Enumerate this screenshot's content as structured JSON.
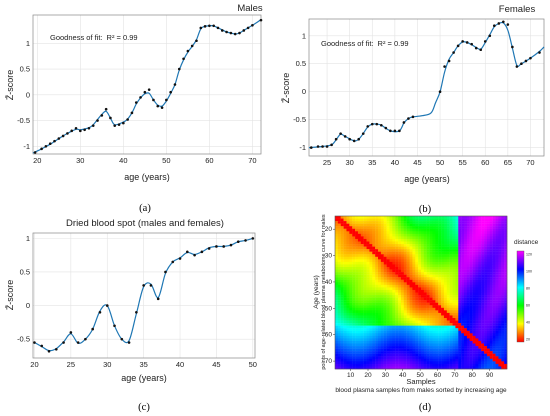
{
  "chart_data": [
    {
      "id": "a",
      "type": "line",
      "title": "Males",
      "xlabel": "age (years)",
      "ylabel": "Z̄-score",
      "xlim": [
        19,
        72
      ],
      "ylim": [
        -1.15,
        1.55
      ],
      "xticks": [
        20,
        30,
        40,
        50,
        60,
        70
      ],
      "yticks": [
        -1,
        -0.5,
        0,
        0.5,
        1
      ],
      "ytick_labels": [
        "-1",
        "-0.5",
        "0",
        "0.5",
        "1"
      ],
      "annotation": "Goodness of fit:",
      "annotation_r2": "R² = 0.99",
      "grid": true,
      "caption": "(a)",
      "points": [
        [
          19.5,
          -1.12
        ],
        [
          21,
          -1.05
        ],
        [
          22,
          -1.0
        ],
        [
          23,
          -0.95
        ],
        [
          24,
          -0.9
        ],
        [
          25,
          -0.85
        ],
        [
          26,
          -0.8
        ],
        [
          27,
          -0.75
        ],
        [
          28,
          -0.7
        ],
        [
          29,
          -0.65
        ],
        [
          30,
          -0.7
        ],
        [
          31,
          -0.68
        ],
        [
          32,
          -0.65
        ],
        [
          33,
          -0.6
        ],
        [
          34,
          -0.5
        ],
        [
          35,
          -0.4
        ],
        [
          36,
          -0.28
        ],
        [
          37,
          -0.45
        ],
        [
          38,
          -0.6
        ],
        [
          39,
          -0.58
        ],
        [
          40,
          -0.55
        ],
        [
          41,
          -0.48
        ],
        [
          42,
          -0.35
        ],
        [
          43,
          -0.15
        ],
        [
          44,
          -0.05
        ],
        [
          45,
          0.05
        ],
        [
          46,
          0.1
        ],
        [
          47,
          -0.1
        ],
        [
          48,
          -0.22
        ],
        [
          49,
          -0.25
        ],
        [
          50,
          -0.1
        ],
        [
          51,
          0.05
        ],
        [
          52,
          0.2
        ],
        [
          53,
          0.5
        ],
        [
          54,
          0.7
        ],
        [
          55,
          0.85
        ],
        [
          56,
          0.95
        ],
        [
          57,
          1.05
        ],
        [
          58,
          1.3
        ],
        [
          59,
          1.33
        ],
        [
          60,
          1.34
        ],
        [
          61,
          1.34
        ],
        [
          62,
          1.3
        ],
        [
          63,
          1.25
        ],
        [
          64,
          1.22
        ],
        [
          65,
          1.2
        ],
        [
          66,
          1.18
        ],
        [
          67,
          1.2
        ],
        [
          68,
          1.25
        ],
        [
          69,
          1.3
        ],
        [
          70,
          1.35
        ],
        [
          72,
          1.45
        ]
      ],
      "fit": [
        [
          19,
          -1.13
        ],
        [
          21,
          -1.05
        ],
        [
          23,
          -0.96
        ],
        [
          25,
          -0.85
        ],
        [
          27,
          -0.75
        ],
        [
          29,
          -0.67
        ],
        [
          30,
          -0.68
        ],
        [
          32,
          -0.64
        ],
        [
          33,
          -0.58
        ],
        [
          34,
          -0.48
        ],
        [
          35,
          -0.38
        ],
        [
          36,
          -0.32
        ],
        [
          37,
          -0.45
        ],
        [
          38,
          -0.58
        ],
        [
          40,
          -0.53
        ],
        [
          41,
          -0.47
        ],
        [
          42,
          -0.35
        ],
        [
          43,
          -0.18
        ],
        [
          44,
          -0.06
        ],
        [
          45,
          0.02
        ],
        [
          46,
          0.03
        ],
        [
          47,
          -0.1
        ],
        [
          48,
          -0.2
        ],
        [
          49,
          -0.22
        ],
        [
          50,
          -0.12
        ],
        [
          51,
          0.03
        ],
        [
          52,
          0.2
        ],
        [
          53,
          0.48
        ],
        [
          54,
          0.68
        ],
        [
          55,
          0.83
        ],
        [
          56,
          0.94
        ],
        [
          57,
          1.07
        ],
        [
          58,
          1.28
        ],
        [
          59,
          1.33
        ],
        [
          60,
          1.34
        ],
        [
          61,
          1.34
        ],
        [
          62,
          1.3
        ],
        [
          63,
          1.26
        ],
        [
          64,
          1.22
        ],
        [
          65,
          1.2
        ],
        [
          66,
          1.18
        ],
        [
          67,
          1.2
        ],
        [
          68,
          1.25
        ],
        [
          70,
          1.35
        ],
        [
          72,
          1.46
        ]
      ]
    },
    {
      "id": "b",
      "type": "line",
      "title": "Females",
      "xlabel": "age (years)",
      "ylabel": "Z̄-score",
      "xlim": [
        21,
        73
      ],
      "ylim": [
        -1.15,
        1.3
      ],
      "xticks": [
        25,
        30,
        35,
        40,
        45,
        50,
        55,
        60,
        65,
        70
      ],
      "yticks": [
        -1,
        -0.5,
        0,
        0.5,
        1
      ],
      "ytick_labels": [
        "-1",
        "-0.5",
        "0",
        "0.5",
        "1"
      ],
      "annotation": "Goodness of fit:",
      "annotation_r2": "R² = 0.99",
      "grid": true,
      "caption": "(b)",
      "points": [
        [
          21.5,
          -1.0
        ],
        [
          23,
          -0.98
        ],
        [
          24,
          -0.98
        ],
        [
          25,
          -0.98
        ],
        [
          26,
          -0.95
        ],
        [
          27,
          -0.85
        ],
        [
          28,
          -0.75
        ],
        [
          29,
          -0.8
        ],
        [
          30,
          -0.85
        ],
        [
          31,
          -0.88
        ],
        [
          32,
          -0.85
        ],
        [
          33,
          -0.75
        ],
        [
          34,
          -0.62
        ],
        [
          35,
          -0.58
        ],
        [
          36,
          -0.58
        ],
        [
          37,
          -0.6
        ],
        [
          38,
          -0.65
        ],
        [
          39,
          -0.7
        ],
        [
          40,
          -0.7
        ],
        [
          41,
          -0.7
        ],
        [
          42,
          -0.55
        ],
        [
          43,
          -0.48
        ],
        [
          44,
          -0.45
        ],
        [
          50,
          0.0
        ],
        [
          51,
          0.45
        ],
        [
          52,
          0.55
        ],
        [
          53,
          0.7
        ],
        [
          54,
          0.82
        ],
        [
          55,
          0.9
        ],
        [
          56,
          0.88
        ],
        [
          57,
          0.85
        ],
        [
          58,
          0.78
        ],
        [
          59,
          0.75
        ],
        [
          60,
          0.9
        ],
        [
          61,
          1.0
        ],
        [
          62,
          1.18
        ],
        [
          63,
          1.22
        ],
        [
          64,
          1.25
        ],
        [
          65,
          1.2
        ],
        [
          66,
          0.8
        ],
        [
          67,
          0.45
        ],
        [
          68,
          0.5
        ],
        [
          69,
          0.55
        ],
        [
          70,
          0.6
        ],
        [
          72,
          0.7
        ]
      ],
      "fit": [
        [
          21,
          -1.0
        ],
        [
          24,
          -0.98
        ],
        [
          26,
          -0.95
        ],
        [
          27,
          -0.86
        ],
        [
          28,
          -0.76
        ],
        [
          29,
          -0.8
        ],
        [
          31,
          -0.88
        ],
        [
          32,
          -0.85
        ],
        [
          33,
          -0.75
        ],
        [
          34,
          -0.63
        ],
        [
          35,
          -0.58
        ],
        [
          36,
          -0.58
        ],
        [
          37,
          -0.6
        ],
        [
          39,
          -0.7
        ],
        [
          41,
          -0.7
        ],
        [
          42,
          -0.56
        ],
        [
          43,
          -0.48
        ],
        [
          44,
          -0.45
        ],
        [
          46,
          -0.43
        ],
        [
          48,
          -0.38
        ],
        [
          49,
          -0.2
        ],
        [
          50,
          0.0
        ],
        [
          51,
          0.35
        ],
        [
          52,
          0.58
        ],
        [
          53,
          0.7
        ],
        [
          54,
          0.82
        ],
        [
          55,
          0.89
        ],
        [
          56,
          0.88
        ],
        [
          57,
          0.84
        ],
        [
          58,
          0.79
        ],
        [
          59,
          0.76
        ],
        [
          60,
          0.88
        ],
        [
          61,
          1.02
        ],
        [
          62,
          1.16
        ],
        [
          63,
          1.22
        ],
        [
          64,
          1.23
        ],
        [
          65,
          1.1
        ],
        [
          66,
          0.78
        ],
        [
          67,
          0.47
        ],
        [
          68,
          0.5
        ],
        [
          70,
          0.6
        ],
        [
          72,
          0.72
        ],
        [
          73,
          0.8
        ]
      ]
    },
    {
      "id": "c",
      "type": "line",
      "title": "Dried blood spot (males and females)",
      "xlabel": "age (years)",
      "ylabel": "Z̄-score",
      "xlim": [
        19.8,
        50.3
      ],
      "ylim": [
        -0.78,
        1.08
      ],
      "xticks": [
        20,
        25,
        30,
        35,
        40,
        45,
        50
      ],
      "yticks": [
        -0.5,
        0,
        0.5,
        1
      ],
      "ytick_labels": [
        "-0.5",
        "0",
        "0.5",
        "1"
      ],
      "grid": true,
      "caption": "(c)",
      "points": [
        [
          20,
          -0.55
        ],
        [
          21,
          -0.6
        ],
        [
          22,
          -0.68
        ],
        [
          23,
          -0.65
        ],
        [
          24,
          -0.55
        ],
        [
          25,
          -0.4
        ],
        [
          26,
          -0.55
        ],
        [
          27,
          -0.5
        ],
        [
          28,
          -0.35
        ],
        [
          29,
          -0.1
        ],
        [
          30,
          0.0
        ],
        [
          31,
          -0.3
        ],
        [
          32,
          -0.5
        ],
        [
          33,
          -0.55
        ],
        [
          34,
          -0.1
        ],
        [
          35,
          0.3
        ],
        [
          36,
          0.3
        ],
        [
          37,
          0.1
        ],
        [
          38,
          0.5
        ],
        [
          39,
          0.65
        ],
        [
          40,
          0.7
        ],
        [
          41,
          0.8
        ],
        [
          42,
          0.75
        ],
        [
          43,
          0.8
        ],
        [
          44,
          0.85
        ],
        [
          45,
          0.88
        ],
        [
          46,
          0.88
        ],
        [
          47,
          0.9
        ],
        [
          48,
          0.95
        ],
        [
          49,
          0.97
        ],
        [
          50,
          1.0
        ]
      ],
      "fit": [
        [
          20,
          -0.55
        ],
        [
          21,
          -0.61
        ],
        [
          22,
          -0.67
        ],
        [
          23,
          -0.64
        ],
        [
          24,
          -0.54
        ],
        [
          25,
          -0.42
        ],
        [
          26,
          -0.56
        ],
        [
          27,
          -0.5
        ],
        [
          28,
          -0.35
        ],
        [
          29,
          -0.08
        ],
        [
          30,
          0.0
        ],
        [
          31,
          -0.3
        ],
        [
          32,
          -0.5
        ],
        [
          33,
          -0.52
        ],
        [
          34,
          -0.12
        ],
        [
          35,
          0.28
        ],
        [
          36,
          0.32
        ],
        [
          37,
          0.12
        ],
        [
          38,
          0.48
        ],
        [
          39,
          0.65
        ],
        [
          40,
          0.71
        ],
        [
          41,
          0.79
        ],
        [
          42,
          0.76
        ],
        [
          43,
          0.8
        ],
        [
          44,
          0.86
        ],
        [
          45,
          0.88
        ],
        [
          46,
          0.88
        ],
        [
          47,
          0.9
        ],
        [
          48,
          0.95
        ],
        [
          49,
          0.97
        ],
        [
          50,
          1.0
        ]
      ]
    },
    {
      "id": "d",
      "type": "heatmap",
      "xlabel": "Samples",
      "xlabel2": "blood plasma samples from males sorted by increasing age",
      "ylabel": "Age (years)",
      "ylabel2": "points of age-related blood plasma metabolome curve for males",
      "xticks": [
        10,
        20,
        30,
        40,
        50,
        60,
        70,
        80,
        90
      ],
      "yticks": [
        20,
        30,
        40,
        50,
        60,
        70
      ],
      "xlim": [
        1,
        100
      ],
      "ylim": [
        15,
        73
      ],
      "colorbar_label": "distance",
      "colorbar_ticks": [
        "120",
        "100",
        "80",
        "60",
        "40",
        "20"
      ],
      "caption": "(d)"
    }
  ]
}
